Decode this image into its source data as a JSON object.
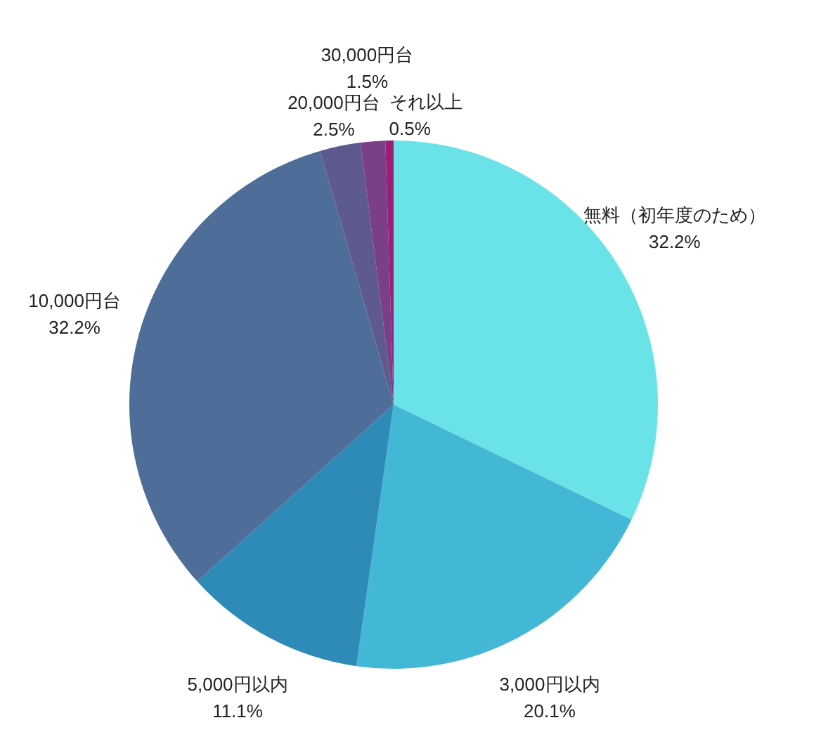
{
  "chart_data": {
    "type": "pie",
    "categories": [
      "無料（初年度のため）",
      "3,000円以内",
      "5,000円以内",
      "10,000円台",
      "20,000円台",
      "30,000円台",
      "それ以上"
    ],
    "values": [
      32.2,
      20.1,
      11.1,
      32.2,
      2.5,
      1.5,
      0.5
    ],
    "value_labels": [
      "32.2%",
      "20.1%",
      "11.1%",
      "32.2%",
      "2.5%",
      "1.5%",
      "0.5%"
    ],
    "colors": [
      "#6ae3e8",
      "#43b8d6",
      "#2e8bb8",
      "#4e6e99",
      "#5e5a8e",
      "#7a3f86",
      "#9b1f75"
    ]
  }
}
